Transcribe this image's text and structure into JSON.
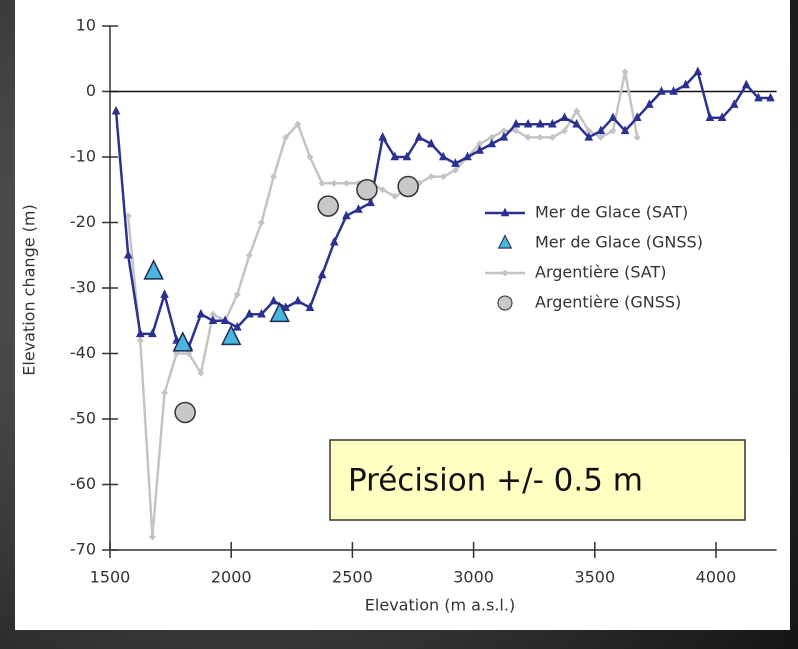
{
  "chart_data": {
    "type": "line",
    "xlabel": "Elevation (m a.s.l.)",
    "ylabel": "Elevation change (m)",
    "annotation": "Précision +/- 0.5 m",
    "xlim": [
      1500,
      4250
    ],
    "xticks": [
      1500,
      2000,
      2500,
      3000,
      3500,
      4000
    ],
    "ylim": [
      -70,
      10
    ],
    "yticks": [
      10,
      0,
      -10,
      -20,
      -30,
      -40,
      -50,
      -60,
      -70
    ],
    "legend": "right",
    "series": [
      {
        "name": "Mer de Glace (SAT)",
        "color": "#2b3190",
        "mode": "line",
        "marker": "triangle",
        "x": [
          1525,
          1575,
          1625,
          1675,
          1725,
          1775,
          1825,
          1875,
          1925,
          1975,
          2025,
          2075,
          2125,
          2175,
          2225,
          2275,
          2325,
          2375,
          2425,
          2475,
          2525,
          2575,
          2625,
          2675,
          2725,
          2775,
          2825,
          2875,
          2925,
          2975,
          3025,
          3075,
          3125,
          3175,
          3225,
          3275,
          3325,
          3375,
          3425,
          3475,
          3525,
          3575,
          3625,
          3675,
          3725,
          3775,
          3825,
          3875,
          3925,
          3975,
          4025,
          4075,
          4125,
          4175,
          4225
        ],
        "values": [
          -3,
          -25,
          -37,
          -37,
          -31,
          -38,
          -39,
          -34,
          -35,
          -35,
          -36,
          -34,
          -34,
          -32,
          -33,
          -32,
          -33,
          -28,
          -23,
          -19,
          -18,
          -17,
          -7,
          -10,
          -10,
          -7,
          -8,
          -10,
          -11,
          -10,
          -9,
          -8,
          -7,
          -5,
          -5,
          -5,
          -5,
          -4,
          -5,
          -7,
          -6,
          -4,
          -6,
          -4,
          -2,
          0,
          0,
          1,
          3,
          -4,
          -4,
          -2,
          1,
          -1,
          -1
        ]
      },
      {
        "name": "Mer de Glace (GNSS)",
        "color": "#4ab6df",
        "mode": "markers",
        "marker": "triangle",
        "x": [
          1680,
          1800,
          2000,
          2200
        ],
        "values": [
          -27.5,
          -38.5,
          -37.5,
          -34
        ]
      },
      {
        "name": "Argentière (SAT)",
        "color": "#c4c4c4",
        "mode": "line",
        "marker": "diamond",
        "x": [
          1575,
          1625,
          1675,
          1725,
          1775,
          1825,
          1875,
          1925,
          1975,
          2025,
          2075,
          2125,
          2175,
          2225,
          2275,
          2325,
          2375,
          2425,
          2475,
          2525,
          2575,
          2625,
          2675,
          2725,
          2775,
          2825,
          2875,
          2925,
          2975,
          3025,
          3075,
          3125,
          3175,
          3225,
          3275,
          3325,
          3375,
          3425,
          3475,
          3525,
          3575,
          3625,
          3675
        ],
        "values": [
          -19,
          -38,
          -68,
          -46,
          -40,
          -40,
          -43,
          -34,
          -35,
          -31,
          -25,
          -20,
          -13,
          -7,
          -5,
          -10,
          -14,
          -14,
          -14,
          -14,
          -14,
          -15,
          -16,
          -15,
          -14,
          -13,
          -13,
          -12,
          -10,
          -8,
          -7,
          -6,
          -6,
          -7,
          -7,
          -7,
          -6,
          -3,
          -6,
          -7,
          -6,
          3,
          -7
        ]
      },
      {
        "name": "Argentière (GNSS)",
        "color": "#c8c8c8",
        "mode": "markers",
        "marker": "circle",
        "x": [
          1810,
          2400,
          2560,
          2730
        ],
        "values": [
          -49,
          -17.5,
          -15,
          -14.5
        ]
      }
    ]
  }
}
